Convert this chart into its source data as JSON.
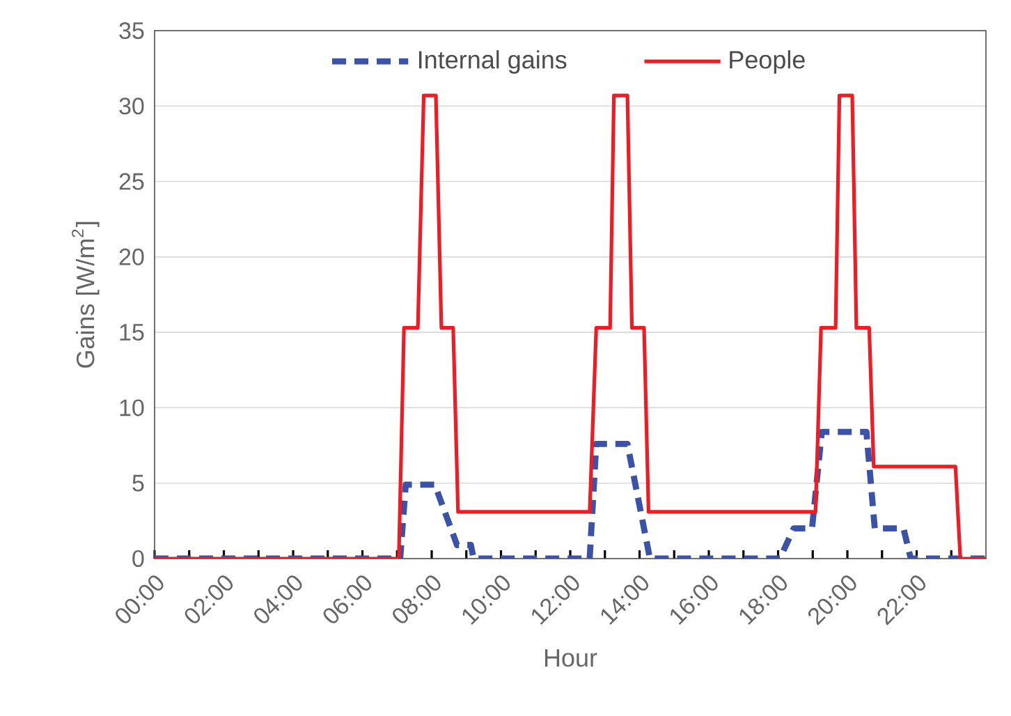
{
  "chart_data": {
    "type": "line",
    "xlabel": "Hour",
    "ylabel": "Gains [W/m$^{2}$]",
    "xlim": [
      0,
      24
    ],
    "ylim": [
      0,
      35
    ],
    "xticks": [
      {
        "value": 0,
        "label": "00:00"
      },
      {
        "value": 1,
        "label": null
      },
      {
        "value": 2,
        "label": "02:00"
      },
      {
        "value": 3,
        "label": null
      },
      {
        "value": 4,
        "label": "04:00"
      },
      {
        "value": 5,
        "label": null
      },
      {
        "value": 6,
        "label": "06:00"
      },
      {
        "value": 7,
        "label": null
      },
      {
        "value": 8,
        "label": "08:00"
      },
      {
        "value": 9,
        "label": null
      },
      {
        "value": 10,
        "label": "10:00"
      },
      {
        "value": 11,
        "label": null
      },
      {
        "value": 12,
        "label": "12:00"
      },
      {
        "value": 13,
        "label": null
      },
      {
        "value": 14,
        "label": "14:00"
      },
      {
        "value": 15,
        "label": null
      },
      {
        "value": 16,
        "label": "16:00"
      },
      {
        "value": 17,
        "label": null
      },
      {
        "value": 18,
        "label": "18:00"
      },
      {
        "value": 19,
        "label": null
      },
      {
        "value": 20,
        "label": "20:00"
      },
      {
        "value": 21,
        "label": null
      },
      {
        "value": 22,
        "label": "22:00"
      },
      {
        "value": 23,
        "label": null
      }
    ],
    "yticks": [
      0,
      5,
      10,
      15,
      20,
      25,
      30,
      35
    ],
    "grid": "y",
    "legend": "top",
    "marker": "none",
    "series": [
      {
        "name": "Internal gains",
        "color": "#3a52a8",
        "line_style": "dashed",
        "x": [
          0,
          7.09,
          7.25,
          8.09,
          8.73,
          9.13,
          9.21,
          12.56,
          12.75,
          13.65,
          14.3,
          18.05,
          18.45,
          18.98,
          19.26,
          20.55,
          20.79,
          21.62,
          21.83,
          24
        ],
        "values": [
          0,
          0,
          4.9,
          4.9,
          0.9,
          0.9,
          0,
          0,
          7.6,
          7.6,
          0,
          0,
          2.0,
          2.0,
          8.4,
          8.4,
          2.0,
          2.0,
          0,
          0
        ]
      },
      {
        "name": "People",
        "color": "#ee1c25",
        "line_style": "solid",
        "x": [
          0,
          7.05,
          7.2,
          7.6,
          7.77,
          8.12,
          8.28,
          8.62,
          8.76,
          12.56,
          12.75,
          13.15,
          13.26,
          13.65,
          13.78,
          14.13,
          14.26,
          19.08,
          19.24,
          19.66,
          19.77,
          20.14,
          20.26,
          20.63,
          20.76,
          23.12,
          23.26,
          24
        ],
        "values": [
          0,
          0,
          15.3,
          15.3,
          30.7,
          30.7,
          15.3,
          15.3,
          3.1,
          3.1,
          15.3,
          15.3,
          30.7,
          30.7,
          15.3,
          15.3,
          3.1,
          3.1,
          15.3,
          15.3,
          30.7,
          30.7,
          15.3,
          15.3,
          6.1,
          6.1,
          0,
          0
        ]
      }
    ]
  }
}
